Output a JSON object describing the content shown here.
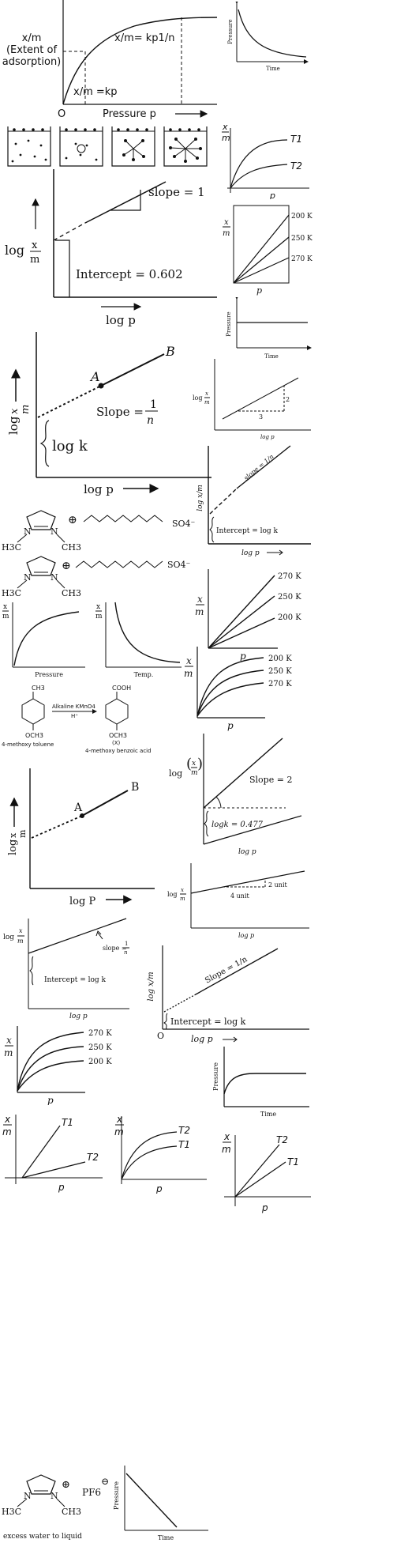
{
  "p1": {
    "y_label_1": "x/m",
    "y_label_2": "(Extent of",
    "y_label_3": "adsorption)",
    "upper_eq": "x/m= kp1/n",
    "lower_eq": "x/m =kp",
    "origin": "O",
    "x_label": "Pressure  p"
  },
  "p2": {
    "y_label": "Pressure",
    "x_label": "Time"
  },
  "p4": {
    "y_num": "x",
    "y_den": "m",
    "x_label": "p",
    "curve_1": "T1",
    "curve_2": "T2"
  },
  "p5": {
    "slope_label": "slope = 1",
    "y_label": "log",
    "y_num": "x",
    "y_den": "m",
    "intercept_label": "Intercept = 0.602",
    "x_label": "log  p"
  },
  "p6": {
    "y_num": "x",
    "y_den": "m",
    "x_label": "p",
    "line_1": "200 K",
    "line_2": "250 K",
    "line_3": "270 K"
  },
  "p7": {
    "y_label": "Pressure",
    "x_label": "Time"
  },
  "p8": {
    "point_a": "A",
    "point_b": "B",
    "slope_text": "Slope =",
    "slope_num": "1",
    "slope_den": "n",
    "intercept_label": "log k",
    "x_label": "log p",
    "y_label": "log",
    "y_num": "x",
    "y_den": "m"
  },
  "p9": {
    "y_label": "log",
    "y_num": "x",
    "y_den": "m",
    "rise": "2",
    "run": "3",
    "x_label": "log p"
  },
  "p10": {
    "y_label": "log x/m",
    "slope_label": "slope = 1/n",
    "intercept_label": "Intercept = log k",
    "x_label": "log p"
  },
  "p11": {
    "h3c_1": "H3C",
    "ch3_1": "CH3",
    "n_1": "N",
    "n_2": "N",
    "plus_1": "⊕",
    "so4_1": "SO4⁻",
    "h3c_2": "H3C",
    "ch3_2": "CH3",
    "n_3": "N",
    "n_4": "N",
    "plus_2": "⊕",
    "so4_2": "SO4⁻"
  },
  "p12": {
    "y_num": "x",
    "y_den": "m",
    "x_label": "p",
    "line_1": "270 K",
    "line_2": "250 K",
    "line_3": "200 K"
  },
  "p13": {
    "y_num": "x",
    "y_den": "m",
    "x_label": "Pressure"
  },
  "p14": {
    "y_num": "x",
    "y_den": "m",
    "x_label": "Temp."
  },
  "p15": {
    "y_num": "x",
    "y_den": "m",
    "x_label": "p",
    "curve_1": "200 K",
    "curve_2": "250 K",
    "curve_3": "270 K"
  },
  "p16": {
    "ch3": "CH3",
    "reagent": "Alkaline KMnO4",
    "acid": "H⁺",
    "och3_1": "OCH3",
    "name_1": "4-methoxy toluene",
    "cooh": "COOH",
    "och3_2": "OCH3",
    "x_tag": "(X)",
    "name_2": "4-methoxy benzoic acid"
  },
  "p17": {
    "y_label": "log",
    "y_num": "x",
    "y_den": "m",
    "slope_label": "Slope = 2",
    "intercept_label": "logk = 0.477",
    "x_label": "log p"
  },
  "p18": {
    "point_a": "A",
    "point_b": "B",
    "y_label": "log",
    "y_num": "x",
    "y_den": "m",
    "x_label": "log P"
  },
  "p19": {
    "y_label": "log",
    "y_num": "x",
    "y_den": "m",
    "rise": "2 unit",
    "run": "4 unit",
    "x_label": "log p"
  },
  "p20": {
    "y_label": "log",
    "y_num": "x",
    "y_den": "m",
    "slope_text": "slope =",
    "slope_num": "1",
    "slope_den": "n",
    "intercept_label": "Intercept = log k",
    "x_label": "log p"
  },
  "p21": {
    "y_label": "log x/m",
    "slope_label": "Slope = 1/n",
    "intercept_label": "Intercept = log k",
    "origin": "O",
    "x_label": "log p"
  },
  "p22": {
    "y_num": "x",
    "y_den": "m",
    "x_label": "p",
    "curve_1": "270 K",
    "curve_2": "250 K",
    "curve_3": "200 K"
  },
  "p23": {
    "y_label": "Pressure",
    "x_label": "Time"
  },
  "p24": {
    "y_num": "x",
    "y_den": "m",
    "x_label": "p",
    "line_1": "T1",
    "line_2": "T2"
  },
  "p25": {
    "y_num": "x",
    "y_den": "m",
    "x_label": "p",
    "curve_1": "T2",
    "curve_2": "T1"
  },
  "p26": {
    "y_num": "x",
    "y_den": "m",
    "x_label": "p",
    "line_1": "T2",
    "line_2": "T1"
  },
  "p27": {
    "h3c": "H3C",
    "ch3": "CH3",
    "n_1": "N",
    "n_2": "N",
    "plus": "⊕",
    "anion": "PF6",
    "minus": "⊖",
    "caption": "excess water to liquid"
  },
  "p28": {
    "y_label": "Pressure",
    "x_label": "Time"
  }
}
